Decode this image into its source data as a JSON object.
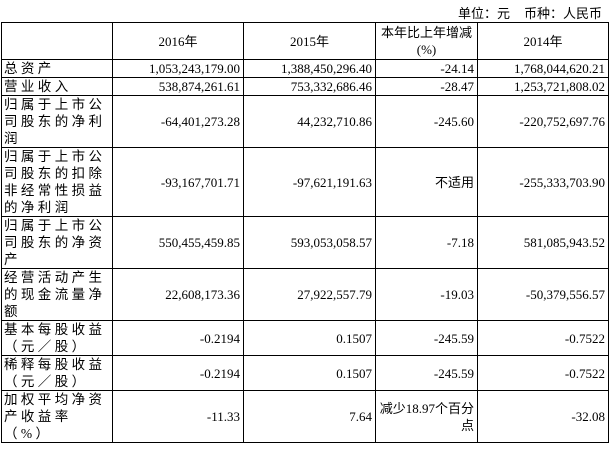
{
  "header": {
    "unit": "单位：元",
    "currency": "币种：人民币"
  },
  "table": {
    "columns": [
      "",
      "2016年",
      "2015年",
      "本年比上年增减(%)",
      "2014年"
    ],
    "rows": [
      [
        "总资产",
        "1,053,243,179.00",
        "1,388,450,296.40",
        "-24.14",
        "1,768,044,620.21"
      ],
      [
        "营业收入",
        "538,874,261.61",
        "753,332,686.46",
        "-28.47",
        "1,253,721,808.02"
      ],
      [
        "归属于上市公司股东的净利润",
        "-64,401,273.28",
        "44,232,710.86",
        "-245.60",
        "-220,752,697.76"
      ],
      [
        "归属于上市公司股东的扣除非经常性损益的净利润",
        "-93,167,701.71",
        "-97,621,191.63",
        "不适用",
        "-255,333,703.90"
      ],
      [
        "归属于上市公司股东的净资产",
        "550,455,459.85",
        "593,053,058.57",
        "-7.18",
        "581,085,943.52"
      ],
      [
        "经营活动产生的现金流量净额",
        "22,608,173.36",
        "27,922,557.79",
        "-19.03",
        "-50,379,556.57"
      ],
      [
        "基本每股收益（元／股）",
        "-0.2194",
        "0.1507",
        "-245.59",
        "-0.7522"
      ],
      [
        "稀释每股收益（元／股）",
        "-0.2194",
        "0.1507",
        "-245.59",
        "-0.7522"
      ],
      [
        "加权平均净资产收益率（%）",
        "-11.33",
        "7.64",
        "减少18.97个百分点",
        "-32.08"
      ]
    ]
  }
}
